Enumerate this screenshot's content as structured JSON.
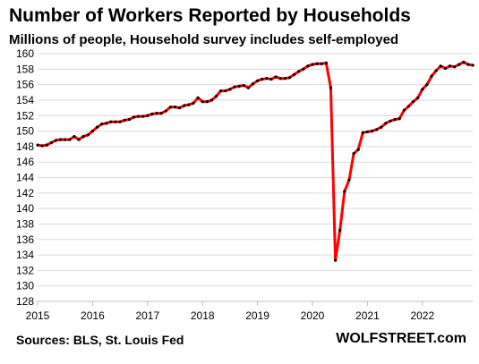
{
  "chart_data": {
    "type": "line",
    "title": "Number of Workers Reported by Households",
    "subtitle": "Millions of people, Household survey includes self-employed",
    "source": "Sources: BLS, St. Louis Fed",
    "brand": "WOLFSTREET.com",
    "xlabel": "",
    "ylabel": "",
    "ylim": [
      128,
      160
    ],
    "yticks": [
      128,
      130,
      132,
      134,
      136,
      138,
      140,
      142,
      144,
      146,
      148,
      150,
      152,
      154,
      156,
      158,
      160
    ],
    "xlim": [
      2015.0,
      2022.917
    ],
    "xticks": [
      "2015",
      "2016",
      "2017",
      "2018",
      "2019",
      "2020",
      "2021",
      "2022"
    ],
    "grid": "horizontal",
    "line_color": "#ff0000",
    "marker_color": "#000000",
    "series": [
      {
        "x": [
          2015.0,
          2015.083,
          2015.167,
          2015.25,
          2015.333,
          2015.417,
          2015.5,
          2015.583,
          2015.667,
          2015.75,
          2015.833,
          2015.917,
          2016.0,
          2016.083,
          2016.167,
          2016.25,
          2016.333,
          2016.417,
          2016.5,
          2016.583,
          2016.667,
          2016.75,
          2016.833,
          2016.917,
          2017.0,
          2017.083,
          2017.167,
          2017.25,
          2017.333,
          2017.417,
          2017.5,
          2017.583,
          2017.667,
          2017.75,
          2017.833,
          2017.917,
          2018.0,
          2018.083,
          2018.167,
          2018.25,
          2018.333,
          2018.417,
          2018.5,
          2018.583,
          2018.667,
          2018.75,
          2018.833,
          2018.917,
          2019.0,
          2019.083,
          2019.167,
          2019.25,
          2019.333,
          2019.417,
          2019.5,
          2019.583,
          2019.667,
          2019.75,
          2019.833,
          2019.917,
          2020.0,
          2020.083,
          2020.167,
          2020.25,
          2020.333,
          2020.417,
          2020.5,
          2020.583,
          2020.667,
          2020.75,
          2020.833,
          2020.917,
          2021.0,
          2021.083,
          2021.167,
          2021.25,
          2021.333,
          2021.417,
          2021.5,
          2021.583,
          2021.667,
          2021.75,
          2021.833,
          2021.917,
          2022.0,
          2022.083,
          2022.167,
          2022.25,
          2022.333,
          2022.417,
          2022.5,
          2022.583,
          2022.667,
          2022.75,
          2022.833,
          2022.917
        ],
        "y": [
          148.2,
          148.1,
          148.2,
          148.5,
          148.8,
          148.9,
          148.9,
          148.9,
          149.3,
          148.9,
          149.3,
          149.5,
          150.0,
          150.5,
          150.9,
          151.0,
          151.2,
          151.2,
          151.2,
          151.4,
          151.5,
          151.8,
          151.9,
          151.9,
          152.0,
          152.2,
          152.3,
          152.3,
          152.6,
          153.1,
          153.1,
          153.0,
          153.3,
          153.4,
          153.6,
          154.3,
          153.8,
          153.8,
          154.0,
          154.5,
          155.2,
          155.2,
          155.4,
          155.7,
          155.8,
          155.9,
          155.6,
          156.1,
          156.5,
          156.7,
          156.8,
          156.7,
          157.0,
          156.8,
          156.8,
          156.9,
          157.3,
          157.7,
          158.0,
          158.4,
          158.6,
          158.7,
          158.7,
          158.8,
          155.6,
          133.3,
          137.2,
          142.2,
          143.7,
          147.1,
          147.6,
          149.8,
          149.9,
          150.0,
          150.2,
          150.5,
          151.0,
          151.3,
          151.5,
          151.6,
          152.7,
          153.2,
          153.8,
          154.3,
          155.4,
          156.0,
          157.1,
          157.8,
          158.4,
          158.1,
          158.4,
          158.3,
          158.6,
          158.9,
          158.6,
          158.5
        ]
      }
    ]
  }
}
